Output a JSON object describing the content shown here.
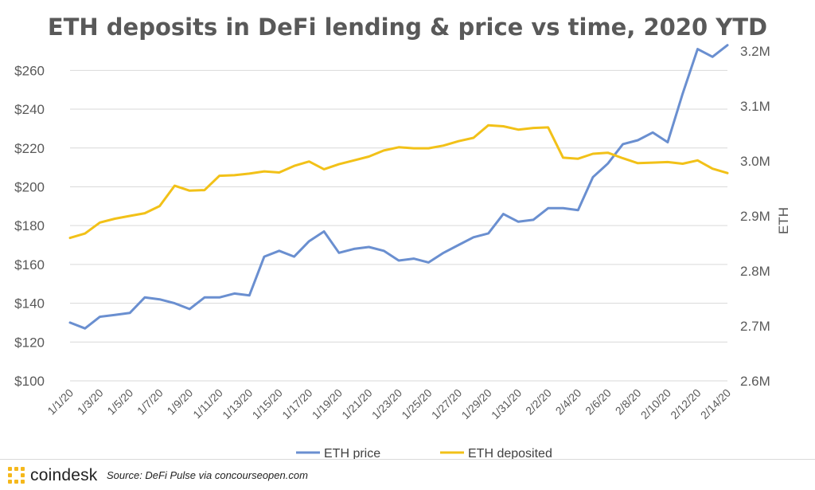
{
  "chart_data": {
    "type": "line",
    "title": "ETH deposits in DeFi lending & price vs time, 2020 YTD",
    "x": [
      "1/1/20",
      "1/2/20",
      "1/3/20",
      "1/4/20",
      "1/5/20",
      "1/6/20",
      "1/7/20",
      "1/8/20",
      "1/9/20",
      "1/10/20",
      "1/11/20",
      "1/12/20",
      "1/13/20",
      "1/14/20",
      "1/15/20",
      "1/16/20",
      "1/17/20",
      "1/18/20",
      "1/19/20",
      "1/20/20",
      "1/21/20",
      "1/22/20",
      "1/23/20",
      "1/24/20",
      "1/25/20",
      "1/26/20",
      "1/27/20",
      "1/28/20",
      "1/29/20",
      "1/30/20",
      "1/31/20",
      "2/1/20",
      "2/2/20",
      "2/3/20",
      "2/4/20",
      "2/5/20",
      "2/6/20",
      "2/7/20",
      "2/8/20",
      "2/9/20",
      "2/10/20",
      "2/11/20",
      "2/12/20",
      "2/13/20",
      "2/14/20"
    ],
    "x_tick_labels": [
      "1/1/20",
      "1/3/20",
      "1/5/20",
      "1/7/20",
      "1/9/20",
      "1/11/20",
      "1/13/20",
      "1/15/20",
      "1/17/20",
      "1/19/20",
      "1/21/20",
      "1/23/20",
      "1/25/20",
      "1/27/20",
      "1/29/20",
      "1/31/20",
      "2/2/20",
      "2/4/20",
      "2/6/20",
      "2/8/20",
      "2/10/20",
      "2/12/20",
      "2/14/20"
    ],
    "y_left_ticks": [
      "$100",
      "$120",
      "$140",
      "$160",
      "$180",
      "$200",
      "$220",
      "$240",
      "$260"
    ],
    "y_left_lim": [
      100,
      270
    ],
    "y_right_label": "ETH",
    "y_right_ticks": [
      "2.6M",
      "2.7M",
      "2.8M",
      "2.9M",
      "3.0M",
      "3.1M",
      "3.2M"
    ],
    "y_right_lim": [
      2.6,
      3.2
    ],
    "grid": true,
    "legend_position": "bottom",
    "series": [
      {
        "name": "ETH price",
        "axis": "left",
        "color": "#6a8fd0",
        "values": [
          130,
          127,
          133,
          134,
          135,
          143,
          142,
          140,
          137,
          143,
          143,
          145,
          144,
          164,
          167,
          164,
          172,
          177,
          166,
          168,
          169,
          167,
          162,
          163,
          161,
          166,
          170,
          174,
          176,
          186,
          182,
          183,
          189,
          189,
          188,
          205,
          212,
          222,
          224,
          228,
          223,
          248,
          271,
          267,
          273
        ]
      },
      {
        "name": "ETH deposited",
        "axis": "right",
        "color": "#f2c118",
        "values": [
          2.86,
          2.868,
          2.888,
          2.895,
          2.9,
          2.905,
          2.918,
          2.955,
          2.946,
          2.947,
          2.973,
          2.974,
          2.977,
          2.981,
          2.979,
          2.991,
          2.999,
          2.985,
          2.994,
          3.001,
          3.008,
          3.019,
          3.025,
          3.023,
          3.023,
          3.028,
          3.036,
          3.042,
          3.065,
          3.063,
          3.057,
          3.06,
          3.061,
          3.006,
          3.004,
          3.013,
          3.015,
          3.005,
          2.996,
          2.997,
          2.998,
          2.995,
          3.001,
          2.986,
          2.978
        ]
      }
    ]
  },
  "footer": {
    "brand": "coindesk",
    "source": "Source: DeFi Pulse via concourseopen.com"
  }
}
